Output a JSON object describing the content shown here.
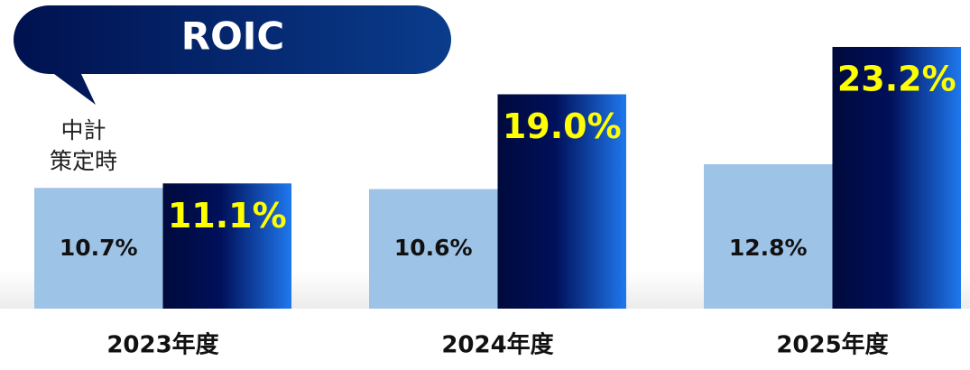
{
  "chart_data": {
    "type": "bar",
    "title": "ROIC",
    "categories": [
      "2023年度",
      "2024年度",
      "2025年度"
    ],
    "series": [
      {
        "name": "中計\n策定時",
        "color": "#9dc3e6",
        "values": [
          10.7,
          10.6,
          12.8
        ],
        "value_labels": [
          "10.7%",
          "10.6%",
          "12.8%"
        ]
      },
      {
        "color": "#000a3c",
        "values": [
          11.1,
          19.0,
          23.2
        ],
        "value_labels": [
          "11.1%",
          "19.0%",
          "23.2%"
        ]
      }
    ],
    "ylim": [
      0,
      24
    ]
  }
}
